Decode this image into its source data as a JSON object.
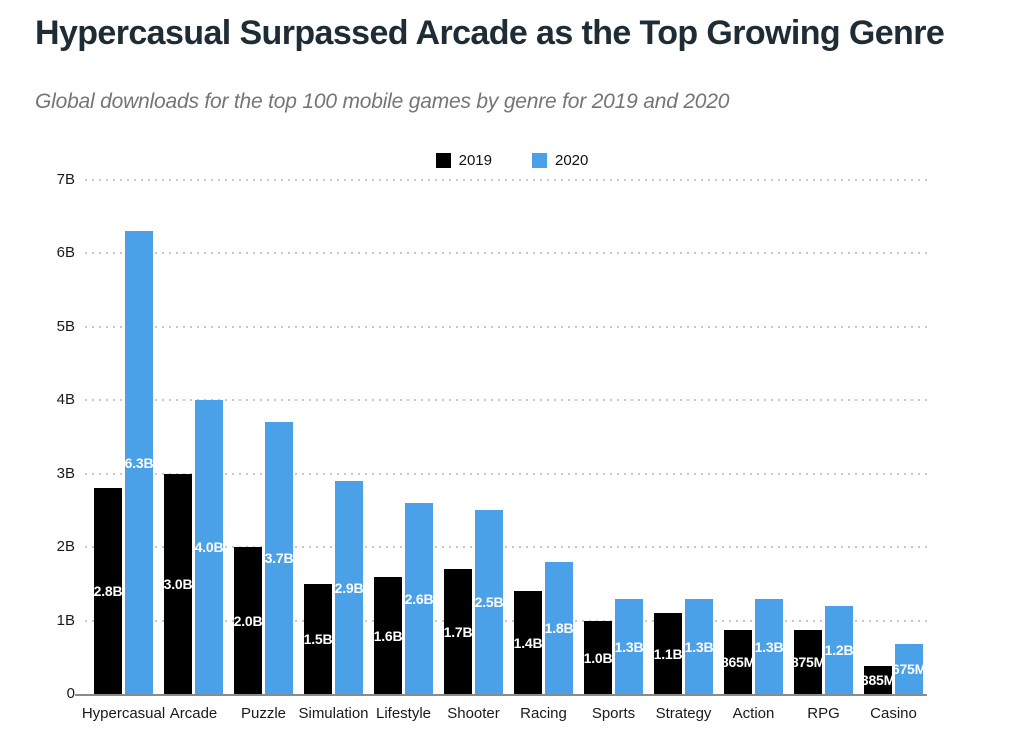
{
  "header": {
    "title": "Hypercasual Surpassed Arcade as the Top Growing Genre",
    "subtitle": "Global downloads for the top 100 mobile games by genre for 2019 and 2020"
  },
  "legend": [
    {
      "label": "2019",
      "color": "#000000"
    },
    {
      "label": "2020",
      "color": "#4ba1e7"
    }
  ],
  "colors": {
    "title_text": "#1e2c35",
    "subtitle_text": "#757575",
    "bar_2019": "#000000",
    "bar_2020": "#4ba1e7",
    "bar_value_text": "#ffffff",
    "axis_text": "#1a1a1a",
    "gridline": "#c8c8c8",
    "axis_line": "#8a8a8a"
  },
  "chart_data": {
    "type": "bar",
    "title": "Hypercasual Surpassed Arcade as the Top Growing Genre",
    "subtitle": "Global downloads for the top 100 mobile games by genre for 2019 and 2020",
    "categories": [
      "Hypercasual",
      "Arcade",
      "Puzzle",
      "Simulation",
      "Lifestyle",
      "Shooter",
      "Racing",
      "Sports",
      "Strategy",
      "Action",
      "RPG",
      "Casino"
    ],
    "series": [
      {
        "name": "2019",
        "color": "#000000",
        "values_billions": [
          2.8,
          3.0,
          2.0,
          1.5,
          1.6,
          1.7,
          1.4,
          1.0,
          1.1,
          0.865,
          0.875,
          0.385
        ],
        "labels": [
          "2.8B",
          "3.0B",
          "2.0B",
          "1.5B",
          "1.6B",
          "1.7B",
          "1.4B",
          "1.0B",
          "1.1B",
          "865M",
          "875M",
          "385M"
        ]
      },
      {
        "name": "2020",
        "color": "#4ba1e7",
        "values_billions": [
          6.3,
          4.0,
          3.7,
          2.9,
          2.6,
          2.5,
          1.8,
          1.3,
          1.3,
          1.3,
          1.2,
          0.675
        ],
        "labels": [
          "6.3B",
          "4.0B",
          "3.7B",
          "2.9B",
          "2.6B",
          "2.5B",
          "1.8B",
          "1.3B",
          "1.3B",
          "1.3B",
          "1.2B",
          "675M"
        ]
      }
    ],
    "y_axis": {
      "ticks": [
        "7B",
        "6B",
        "5B",
        "4B",
        "3B",
        "2B",
        "1B",
        "0"
      ],
      "tick_values_billions": [
        7,
        6,
        5,
        4,
        3,
        2,
        1,
        0
      ],
      "max_billions": 7
    },
    "grid": "dotted horizontal gridlines at each 1B",
    "legend_position": "top-center",
    "value_labels": "white bold, centered inside each bar"
  }
}
